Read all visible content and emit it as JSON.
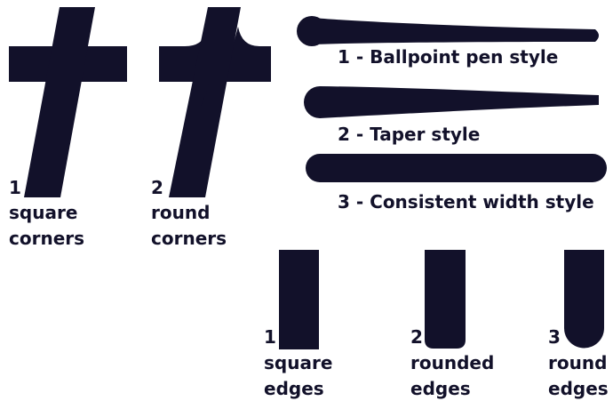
{
  "ink_color": "#12112a",
  "background": "#ffffff",
  "corner_examples": [
    {
      "number": "1",
      "line1": "square",
      "line2": "corners"
    },
    {
      "number": "2",
      "line1": "round",
      "line2": "corners"
    }
  ],
  "stroke_styles": [
    {
      "label": "1 - Ballpoint pen style"
    },
    {
      "label": "2 - Taper style"
    },
    {
      "label": "3 - Consistent width style"
    }
  ],
  "edge_examples": [
    {
      "number": "1",
      "line1": "square",
      "line2": "edges"
    },
    {
      "number": "2",
      "line1": "rounded",
      "line2": "edges"
    },
    {
      "number": "3",
      "line1": "round",
      "line2": "edges"
    }
  ]
}
